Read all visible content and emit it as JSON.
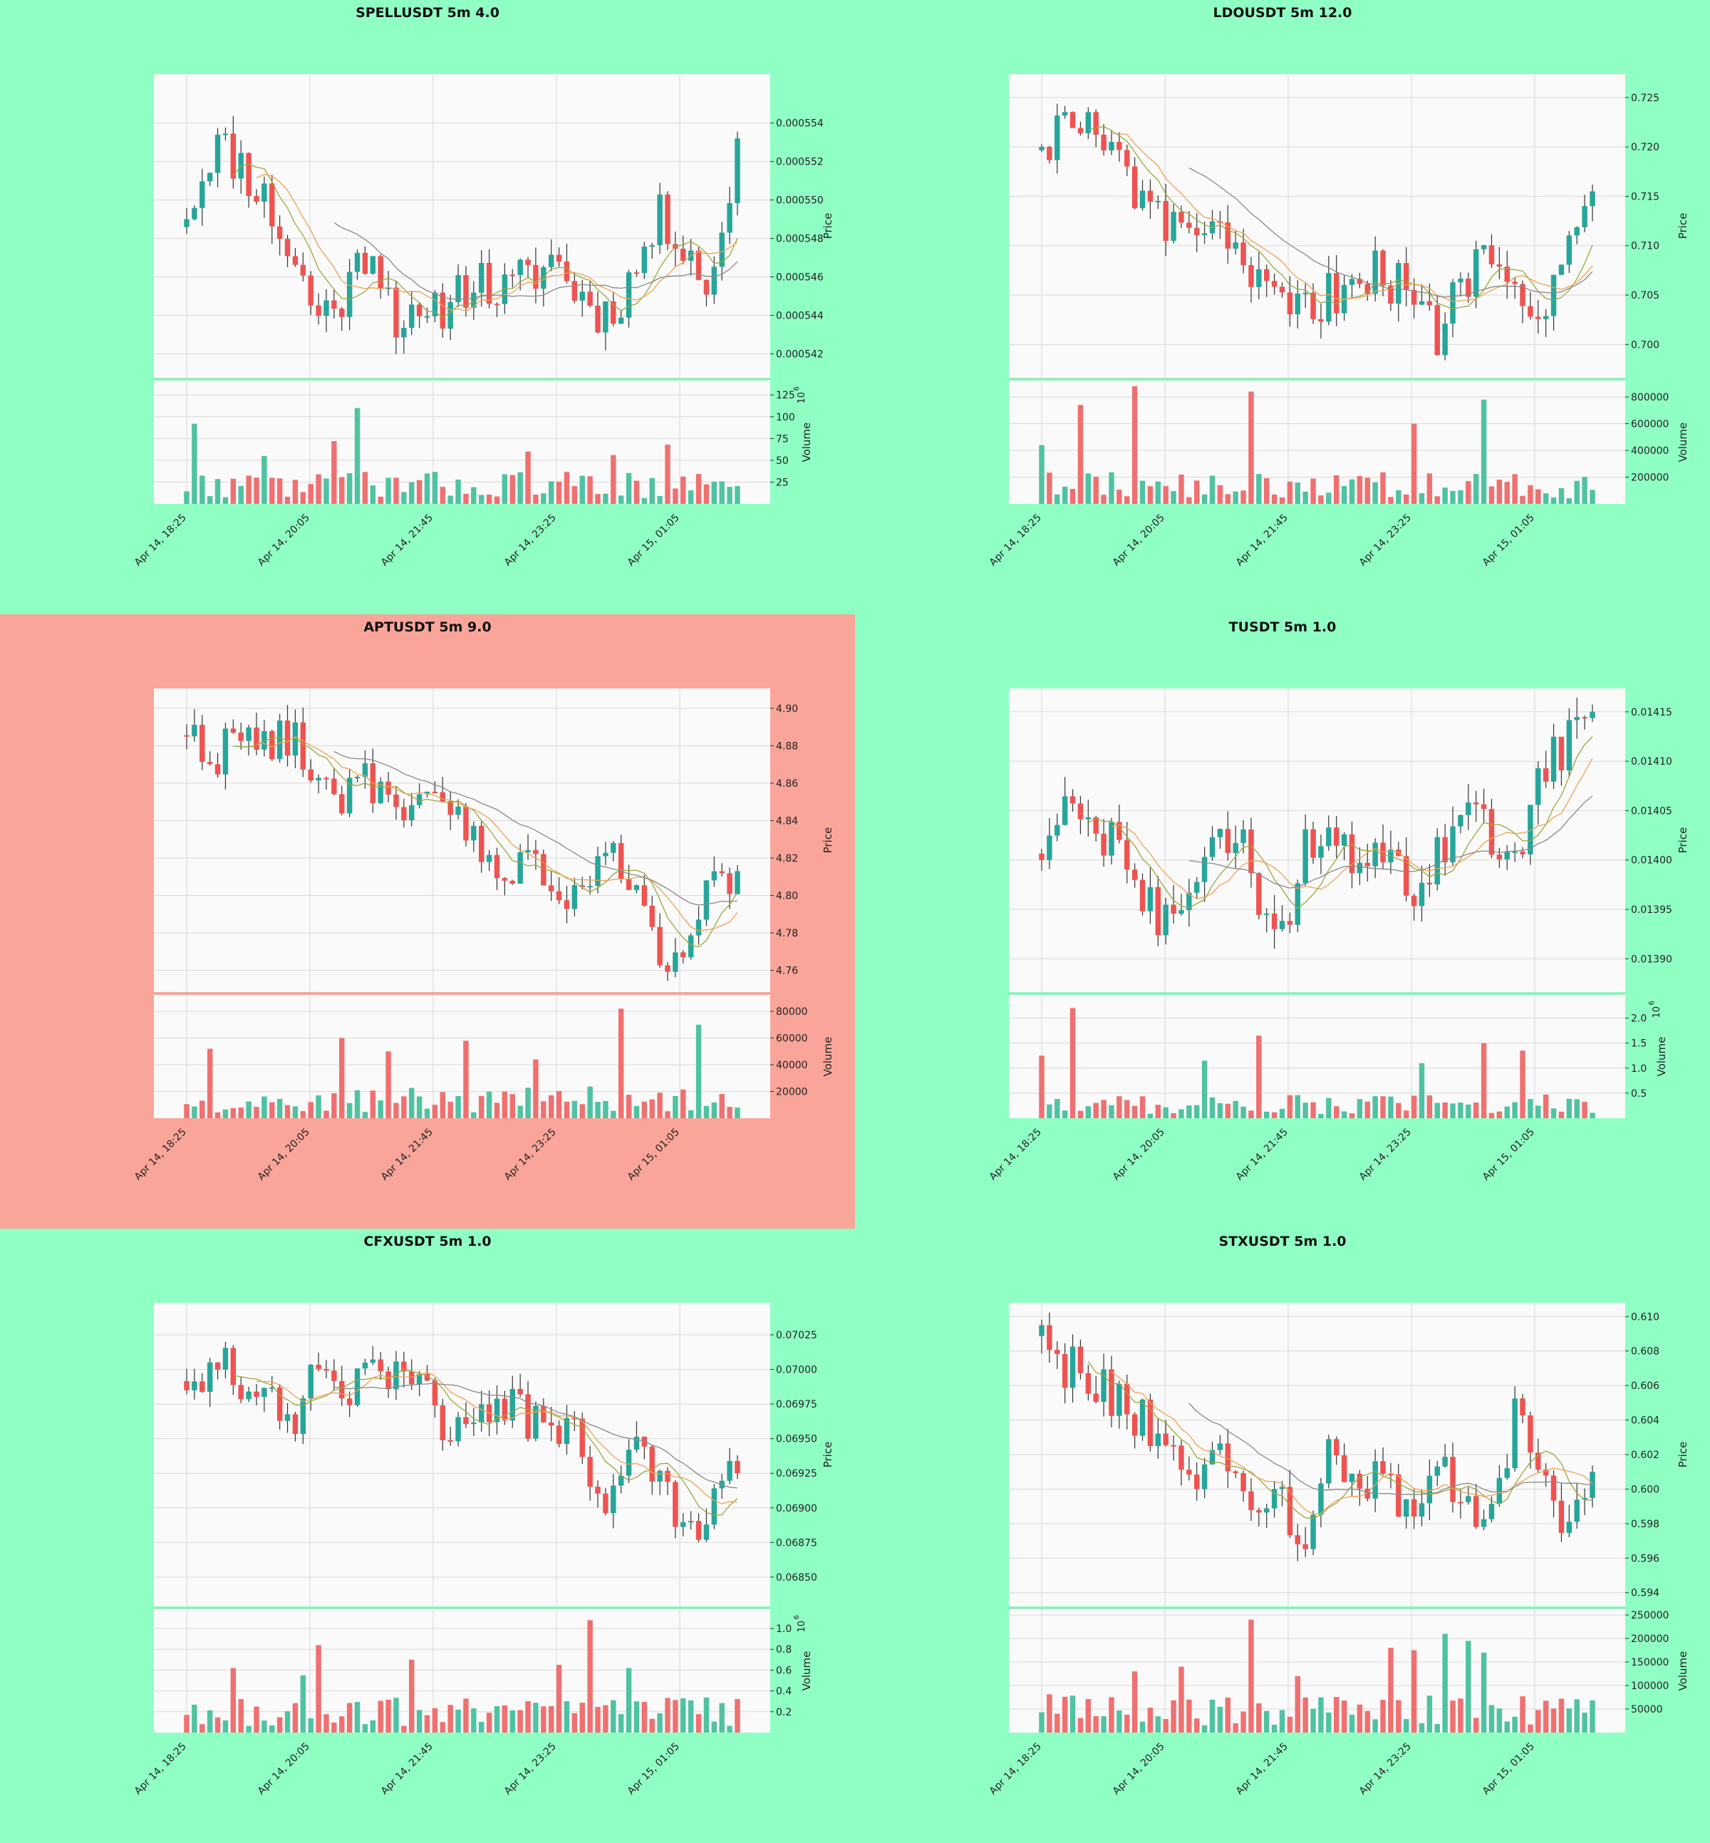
{
  "figure": {
    "background": "#90ffc4"
  },
  "colors": {
    "up": "#26a69a",
    "down": "#ef5350",
    "up_volume": "#4fc3a1",
    "down_volume": "#f07070",
    "ma_fast": "#f0a050",
    "ma_mid": "#9aa83a",
    "ma_slow": "#888888",
    "plot_bg": "#fafafa",
    "grid": "#d8d8d8",
    "highlight_panel": "#f9a59a"
  },
  "chart_data": [
    {
      "title": "SPELLUSDT 5m 4.0",
      "type": "candlestick",
      "highlighted": false,
      "xlabels": [
        "Apr 14, 18:25",
        "Apr 14, 20:05",
        "Apr 14, 21:45",
        "Apr 14, 23:25",
        "Apr 15, 01:05"
      ],
      "price": {
        "ylabel": "Price",
        "ylim": [
          0.0005412,
          0.0005561
        ],
        "ticks": [
          "0.000542",
          "0.000544",
          "0.000546",
          "0.000548",
          "0.000550",
          "0.000552",
          "0.000554"
        ],
        "start": 0.000549,
        "end": 0.0005532,
        "path": [
          0.000549,
          0.000553,
          0.000552,
          0.00055,
          0.000547,
          0.000544,
          0.000545,
          0.000548,
          0.000544,
          0.000543,
          0.000545,
          0.000546,
          0.000545,
          0.000546,
          0.000547,
          0.000545,
          0.000544,
          0.000546,
          0.000549,
          0.000548,
          0.000545,
          0.000553
        ],
        "vol_frac": 0.18
      },
      "volume": {
        "ylabel": "Volume",
        "exponent": "6",
        "ylim": [
          0,
          135
        ],
        "ticks": [
          "25",
          "50",
          "75",
          "100",
          "125"
        ],
        "ticks_v": [
          25,
          50,
          75,
          100,
          125
        ],
        "mean": 22,
        "spikes": [
          [
            1,
            92
          ],
          [
            10,
            55
          ],
          [
            22,
            110
          ],
          [
            19,
            72
          ],
          [
            44,
            60
          ],
          [
            55,
            56
          ],
          [
            62,
            68
          ]
        ]
      }
    },
    {
      "title": "LDOUSDT 5m 12.0",
      "type": "candlestick",
      "highlighted": false,
      "xlabels": [
        "Apr 14, 18:25",
        "Apr 14, 20:05",
        "Apr 14, 21:45",
        "Apr 14, 23:25",
        "Apr 15, 01:05"
      ],
      "price": {
        "ylabel": "Price",
        "ylim": [
          0.6975,
          0.7265
        ],
        "ticks": [
          "0.700",
          "0.705",
          "0.710",
          "0.715",
          "0.720",
          "0.725"
        ],
        "start": 0.72,
        "end": 0.7155,
        "path": [
          0.72,
          0.723,
          0.721,
          0.718,
          0.714,
          0.711,
          0.713,
          0.709,
          0.706,
          0.704,
          0.703,
          0.705,
          0.708,
          0.707,
          0.705,
          0.701,
          0.706,
          0.711,
          0.708,
          0.702,
          0.709,
          0.715
        ],
        "vol_frac": 0.18
      },
      "volume": {
        "ylabel": "Volume",
        "exponent": "",
        "ylim": [
          0,
          880000
        ],
        "ticks": [
          "200000",
          "400000",
          "600000",
          "800000"
        ],
        "ticks_v": [
          200000,
          400000,
          600000,
          800000
        ],
        "mean": 140000,
        "spikes": [
          [
            0,
            440000
          ],
          [
            5,
            740000
          ],
          [
            12,
            880000
          ],
          [
            27,
            840000
          ],
          [
            48,
            600000
          ],
          [
            57,
            780000
          ],
          [
            35,
            190000
          ]
        ]
      }
    },
    {
      "title": "APTUSDT 5m 9.0",
      "type": "candlestick",
      "highlighted": true,
      "xlabels": [
        "Apr 14, 18:25",
        "Apr 14, 20:05",
        "Apr 14, 21:45",
        "Apr 14, 23:25",
        "Apr 15, 01:05"
      ],
      "price": {
        "ylabel": "Price",
        "ylim": [
          4.753,
          4.906
        ],
        "ticks": [
          "4.76",
          "4.78",
          "4.80",
          "4.82",
          "4.84",
          "4.86",
          "4.88",
          "4.90"
        ],
        "start": 4.885,
        "end": 4.813,
        "path": [
          4.885,
          4.875,
          4.884,
          4.88,
          4.888,
          4.865,
          4.85,
          4.862,
          4.838,
          4.848,
          4.845,
          4.832,
          4.808,
          4.815,
          4.8,
          4.805,
          4.822,
          4.808,
          4.765,
          4.78,
          4.805,
          4.813
        ],
        "vol_frac": 0.16
      },
      "volume": {
        "ylabel": "Volume",
        "exponent": "",
        "ylim": [
          0,
          88000
        ],
        "ticks": [
          "20000",
          "40000",
          "60000",
          "80000"
        ],
        "ticks_v": [
          20000,
          40000,
          60000,
          80000
        ],
        "mean": 14000,
        "spikes": [
          [
            3,
            52000
          ],
          [
            20,
            60000
          ],
          [
            36,
            58000
          ],
          [
            45,
            44000
          ],
          [
            56,
            82000
          ],
          [
            66,
            70000
          ],
          [
            72,
            48000
          ],
          [
            26,
            50000
          ]
        ]
      }
    },
    {
      "title": "TUSDT 5m 1.0",
      "type": "candlestick",
      "highlighted": false,
      "xlabels": [
        "Apr 14, 18:25",
        "Apr 14, 20:05",
        "Apr 14, 21:45",
        "Apr 14, 23:25",
        "Apr 15, 01:05"
      ],
      "price": {
        "ylabel": "Price",
        "ylim": [
          0.013875,
          0.014165
        ],
        "ticks": [
          "0.01390",
          "0.01395",
          "0.01400",
          "0.01405",
          "0.01410",
          "0.01415"
        ],
        "start": 0.014,
        "end": 0.01415,
        "path": [
          0.014,
          0.01405,
          0.01404,
          0.014,
          0.01395,
          0.01392,
          0.014,
          0.01401,
          0.014,
          0.0139,
          0.014,
          0.01404,
          0.01398,
          0.014,
          0.01396,
          0.014,
          0.01405,
          0.01402,
          0.014,
          0.0141,
          0.01412,
          0.01415
        ],
        "vol_frac": 0.2
      },
      "volume": {
        "ylabel": "Volume",
        "exponent": "6",
        "ylim": [
          0,
          2.35
        ],
        "ticks": [
          "0.5",
          "1.0",
          "1.5",
          "2.0"
        ],
        "ticks_v": [
          0.5,
          1.0,
          1.5,
          2.0
        ],
        "mean": 0.28,
        "spikes": [
          [
            0,
            1.25
          ],
          [
            4,
            2.2
          ],
          [
            21,
            1.15
          ],
          [
            28,
            1.65
          ],
          [
            49,
            1.1
          ],
          [
            57,
            1.5
          ],
          [
            62,
            1.35
          ]
        ]
      }
    },
    {
      "title": "CFXUSDT 5m 1.0",
      "type": "candlestick",
      "highlighted": false,
      "xlabels": [
        "Apr 14, 18:25",
        "Apr 14, 20:05",
        "Apr 14, 21:45",
        "Apr 14, 23:25",
        "Apr 15, 01:05"
      ],
      "price": {
        "ylabel": "Price",
        "ylim": [
          0.06835,
          0.07042
        ],
        "ticks": [
          "0.06850",
          "0.06875",
          "0.06900",
          "0.06925",
          "0.06950",
          "0.06975",
          "0.07000",
          "0.07025"
        ],
        "start": 0.06985,
        "end": 0.06925,
        "path": [
          0.06985,
          0.0701,
          0.0699,
          0.06975,
          0.0696,
          0.07005,
          0.06985,
          0.06995,
          0.07,
          0.06985,
          0.06945,
          0.06975,
          0.0698,
          0.06965,
          0.0696,
          0.0695,
          0.069,
          0.0694,
          0.0692,
          0.0687,
          0.069,
          0.06925
        ],
        "vol_frac": 0.16
      },
      "volume": {
        "ylabel": "Volume",
        "exponent": "6",
        "ylim": [
          0,
          1.13
        ],
        "ticks": [
          "0.2",
          "0.4",
          "0.6",
          "0.8",
          "1.0"
        ],
        "ticks_v": [
          0.2,
          0.4,
          0.6,
          0.8,
          1.0
        ],
        "mean": 0.2,
        "spikes": [
          [
            6,
            0.62
          ],
          [
            15,
            0.55
          ],
          [
            17,
            0.84
          ],
          [
            29,
            0.7
          ],
          [
            48,
            0.65
          ],
          [
            52,
            1.08
          ],
          [
            57,
            0.62
          ]
        ]
      }
    },
    {
      "title": "STXUSDT 5m 1.0",
      "type": "candlestick",
      "highlighted": false,
      "xlabels": [
        "Apr 14, 18:25",
        "Apr 14, 20:05",
        "Apr 14, 21:45",
        "Apr 14, 23:25",
        "Apr 15, 01:05"
      ],
      "price": {
        "ylabel": "Price",
        "ylim": [
          0.5937,
          0.6103
        ],
        "ticks": [
          "0.594",
          "0.596",
          "0.598",
          "0.600",
          "0.602",
          "0.604",
          "0.606",
          "0.608",
          "0.610"
        ],
        "start": 0.6095,
        "end": 0.601,
        "path": [
          0.6095,
          0.607,
          0.6065,
          0.605,
          0.6035,
          0.6015,
          0.6005,
          0.602,
          0.6,
          0.599,
          0.5975,
          0.602,
          0.6005,
          0.6005,
          0.5995,
          0.601,
          0.6,
          0.598,
          0.604,
          0.601,
          0.5965,
          0.601
        ],
        "vol_frac": 0.18
      },
      "volume": {
        "ylabel": "Volume",
        "exponent": "",
        "ylim": [
          0,
          250000
        ],
        "ticks": [
          "50000",
          "100000",
          "150000",
          "200000",
          "250000"
        ],
        "ticks_v": [
          50000,
          100000,
          150000,
          200000,
          250000
        ],
        "mean": 48000,
        "spikes": [
          [
            12,
            130000
          ],
          [
            18,
            140000
          ],
          [
            27,
            240000
          ],
          [
            33,
            120000
          ],
          [
            45,
            180000
          ],
          [
            48,
            175000
          ],
          [
            52,
            210000
          ],
          [
            55,
            195000
          ],
          [
            57,
            170000
          ]
        ]
      }
    }
  ]
}
